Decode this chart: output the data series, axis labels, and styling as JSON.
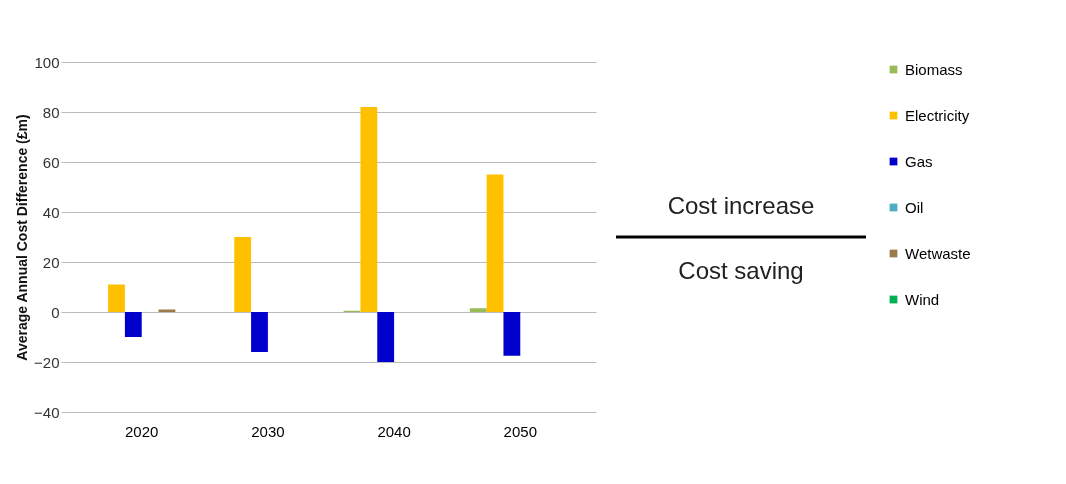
{
  "chart_data": {
    "type": "bar",
    "ylabel": "Average Annual Cost Difference (£m)",
    "categories": [
      "2020",
      "2030",
      "2040",
      "2050"
    ],
    "series": [
      {
        "name": "Biomass",
        "color": "#9bbb59",
        "values": [
          0,
          0,
          0.5,
          1.5
        ]
      },
      {
        "name": "Electricity",
        "color": "#ffc000",
        "values": [
          11,
          30,
          82,
          55
        ]
      },
      {
        "name": "Gas",
        "color": "#0000cc",
        "values": [
          -10,
          -16,
          -20,
          -17.5
        ]
      },
      {
        "name": "Oil",
        "color": "#4bacc6",
        "values": [
          0,
          0,
          0,
          0
        ]
      },
      {
        "name": "Wetwaste",
        "color": "#9c7a4a",
        "values": [
          1,
          0,
          0,
          0
        ]
      },
      {
        "name": "Wind",
        "color": "#00b050",
        "values": [
          0,
          0,
          0,
          0
        ]
      }
    ],
    "ylim": [
      -40,
      100
    ],
    "yticks": [
      -40,
      -20,
      0,
      20,
      40,
      60,
      80,
      100
    ],
    "grid": "y",
    "legend": "right",
    "annotations": [
      "Cost increase",
      "Cost saving"
    ]
  }
}
